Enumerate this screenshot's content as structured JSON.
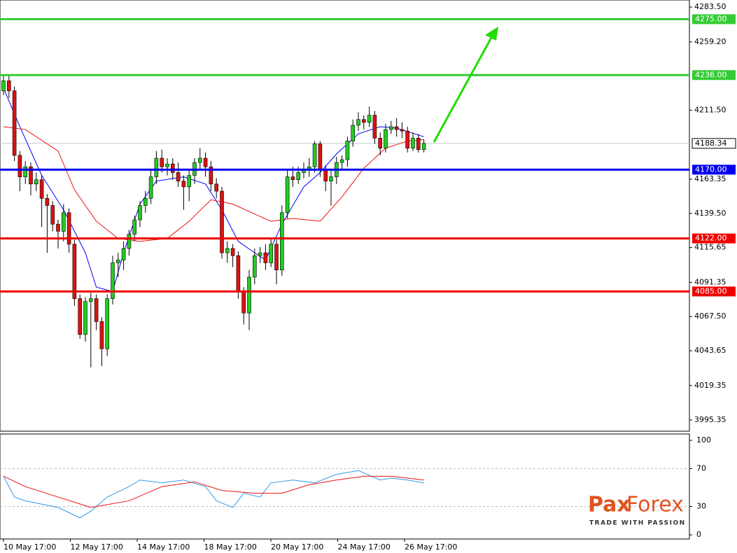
{
  "chart_data": {
    "type": "candlestick",
    "open": [
      4225,
      4232,
      4225,
      4180,
      4165,
      4172,
      4160,
      4163,
      4150,
      4145,
      4132,
      4127,
      4140,
      4118,
      4080,
      4055,
      4078,
      4080,
      4064,
      4045,
      4080,
      4105,
      4107,
      4115,
      4125,
      4135,
      4145,
      4150,
      4165,
      4178,
      4172,
      4174,
      4168,
      4162,
      4158,
      4166,
      4175,
      4178,
      4172,
      4160,
      4155,
      4112,
      4115,
      4110,
      4085,
      4070,
      4095,
      4110,
      4112,
      4105,
      4118,
      4100,
      4140,
      4165,
      4163,
      4168,
      4170,
      4172,
      4188,
      4170,
      4162,
      4165,
      4175,
      4177,
      4190,
      4201,
      4205,
      4203,
      4208,
      4192,
      4185,
      4198,
      4200,
      4198,
      4197,
      4185,
      4192,
      4184
    ],
    "high": [
      4236,
      4236,
      4228,
      4183,
      4176,
      4175,
      4168,
      4166,
      4153,
      4148,
      4135,
      4146,
      4143,
      4121,
      4083,
      4081,
      4084,
      4083,
      4067,
      4083,
      4110,
      4112,
      4120,
      4128,
      4138,
      4148,
      4155,
      4170,
      4183,
      4184,
      4178,
      4178,
      4175,
      4166,
      4170,
      4178,
      4185,
      4182,
      4176,
      4164,
      4158,
      4120,
      4118,
      4113,
      4088,
      4100,
      4115,
      4116,
      4118,
      4122,
      4121,
      4145,
      4170,
      4172,
      4172,
      4175,
      4178,
      4190,
      4190,
      4173,
      4170,
      4179,
      4180,
      4193,
      4205,
      4210,
      4208,
      4214,
      4211,
      4196,
      4202,
      4204,
      4206,
      4203,
      4200,
      4196,
      4195,
      4191
    ],
    "low": [
      4222,
      4220,
      4176,
      4155,
      4160,
      4152,
      4155,
      4130,
      4112,
      4127,
      4115,
      4120,
      4112,
      4075,
      4052,
      4050,
      4032,
      4058,
      4033,
      4040,
      4076,
      4095,
      4100,
      4110,
      4120,
      4130,
      4140,
      4146,
      4160,
      4168,
      4166,
      4163,
      4158,
      4142,
      4148,
      4160,
      4170,
      4165,
      4155,
      4150,
      4108,
      4105,
      4102,
      4080,
      4062,
      4058,
      4090,
      4105,
      4100,
      4102,
      4090,
      4096,
      4136,
      4158,
      4160,
      4164,
      4165,
      4168,
      4165,
      4155,
      4145,
      4160,
      4170,
      4172,
      4186,
      4197,
      4198,
      4200,
      4188,
      4180,
      4182,
      4195,
      4193,
      4192,
      4182,
      4183,
      4182,
      4182
    ],
    "close": [
      4232,
      4225,
      4180,
      4165,
      4172,
      4160,
      4163,
      4150,
      4145,
      4132,
      4127,
      4140,
      4118,
      4080,
      4055,
      4078,
      4080,
      4064,
      4045,
      4080,
      4105,
      4107,
      4115,
      4125,
      4135,
      4145,
      4150,
      4165,
      4178,
      4172,
      4174,
      4168,
      4162,
      4158,
      4166,
      4175,
      4178,
      4172,
      4160,
      4155,
      4112,
      4115,
      4110,
      4085,
      4070,
      4095,
      4110,
      4112,
      4105,
      4118,
      4100,
      4140,
      4165,
      4163,
      4168,
      4170,
      4172,
      4188,
      4170,
      4162,
      4165,
      4175,
      4177,
      4190,
      4201,
      4205,
      4203,
      4208,
      4192,
      4185,
      4198,
      4200,
      4198,
      4197,
      4185,
      4192,
      4184,
      4188.34
    ],
    "up_color": "#22cc22",
    "down_color": "#dd1111",
    "overlays": [
      {
        "color": "#0000ff",
        "x": [
          0,
          3,
          7,
          11,
          15,
          17,
          20,
          22,
          25,
          28,
          33,
          37,
          40,
          43,
          46,
          48,
          51,
          55,
          58,
          61,
          65,
          69,
          72,
          77
        ],
        "values": [
          4227,
          4200,
          4166,
          4142,
          4112,
          4088,
          4085,
          4112,
          4146,
          4162,
          4165,
          4160,
          4142,
          4120,
          4112,
          4107,
          4132,
          4158,
          4168,
          4181,
          4195,
          4200,
          4199,
          4193
        ]
      },
      {
        "color": "#ee1111",
        "x": [
          0,
          4,
          10,
          13,
          17,
          21,
          25,
          30,
          34,
          38,
          42,
          46,
          49,
          53,
          58,
          62,
          66,
          70,
          74,
          77
        ],
        "values": [
          4200,
          4198,
          4183,
          4156,
          4134,
          4122,
          4120,
          4122,
          4134,
          4149,
          4146,
          4139,
          4134,
          4136,
          4134,
          4151,
          4171,
          4185,
          4190,
          4191
        ]
      }
    ],
    "levels": [
      {
        "value": 4275,
        "label": "4275.00",
        "color": "#33cc33"
      },
      {
        "value": 4236,
        "label": "4236.00",
        "color": "#33cc33"
      },
      {
        "value": 4170,
        "label": "4170.00",
        "color": "#0000ee"
      },
      {
        "value": 4122,
        "label": "4122.00",
        "color": "#ee0000"
      },
      {
        "value": 4085,
        "label": "4085.00",
        "color": "#ee0000"
      }
    ],
    "last_price": 4188.34,
    "ylim": [
      3987.5,
      4288.4
    ],
    "yticks": [
      {
        "value": 4283.5,
        "label": "4283.50"
      },
      {
        "value": 4259.2,
        "label": "4259.20"
      },
      {
        "value": 4211.5,
        "label": "4211.50"
      },
      4163.35,
      {
        "value": 4139.5,
        "label": "4139.50"
      },
      4115.65,
      4091.35,
      {
        "value": 4067.5,
        "label": "4067.50"
      },
      4043.65,
      4019.35,
      3995.35
    ],
    "xtick_labels": [
      "10 May 17:00",
      "12 May 17:00",
      "14 May 17:00",
      "18 May 17:00",
      "20 May 17:00",
      "24 May 17:00",
      "26 May 17:00"
    ],
    "oscillator": {
      "y2lim": [
        -4.4,
        106.7
      ],
      "y2ticks": [
        100,
        70,
        30,
        0
      ],
      "series": [
        {
          "color": "#3399ee",
          "axis": "y2",
          "x": [
            0,
            2,
            4,
            10,
            14,
            16,
            19,
            23,
            25,
            29,
            33,
            37,
            39,
            42,
            44,
            47,
            49,
            53,
            57,
            61,
            65,
            69,
            71,
            74,
            77
          ],
          "values": [
            62,
            40,
            36,
            29,
            18,
            25,
            40,
            51,
            58,
            55,
            58,
            51,
            36,
            29,
            44,
            40,
            55,
            58,
            55,
            64,
            68,
            58,
            60,
            58,
            55
          ]
        },
        {
          "color": "#ee1111",
          "axis": "y2",
          "x": [
            0,
            4,
            10,
            16,
            23,
            29,
            35,
            40,
            46,
            51,
            56,
            61,
            66,
            71,
            77
          ],
          "values": [
            62,
            51,
            40,
            29,
            36,
            51,
            56,
            47,
            44,
            44,
            53,
            58,
            62,
            62,
            58
          ]
        }
      ]
    }
  },
  "logo": {
    "name_left": "Pax",
    "name_right": "Forex",
    "tagline": "TRADE WITH PASSION"
  }
}
